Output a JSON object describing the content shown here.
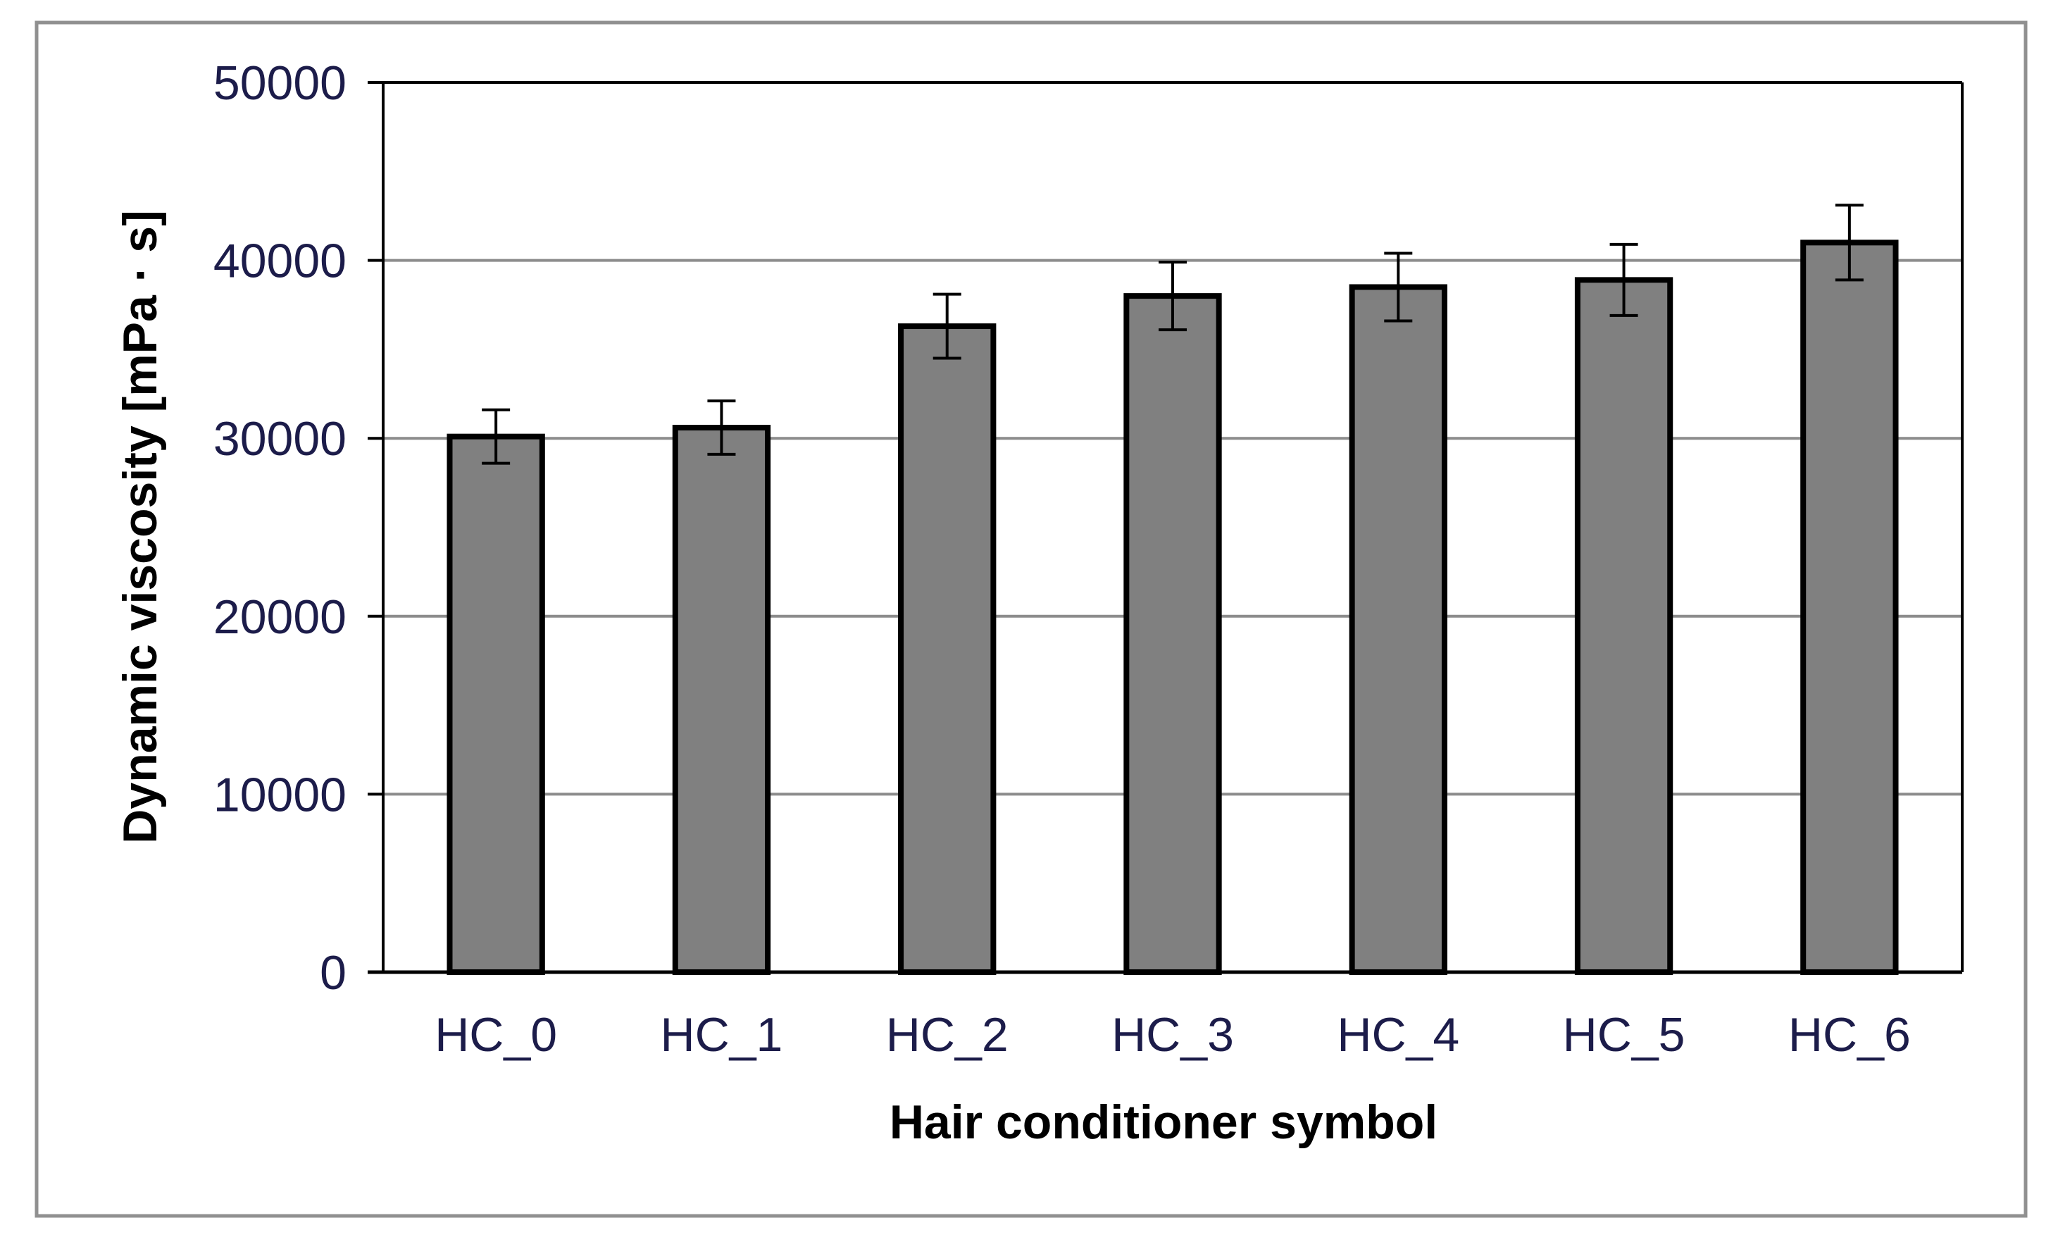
{
  "chart_data": {
    "type": "bar",
    "title": "",
    "xlabel": "Hair conditioner symbol",
    "ylabel": "Dynamic viscosity  [mPa · s]",
    "categories": [
      "HC_0",
      "HC_1",
      "HC_2",
      "HC_3",
      "HC_4",
      "HC_5",
      "HC_6"
    ],
    "series": [
      {
        "values": [
          30100,
          30600,
          36300,
          38000,
          38500,
          38900,
          41000
        ],
        "error": [
          1500,
          1500,
          1800,
          1900,
          1900,
          2000,
          2100
        ]
      }
    ],
    "ylim": [
      0,
      50000
    ],
    "yticks": [
      "0",
      "10000",
      "20000",
      "30000",
      "40000",
      "50000"
    ],
    "grid": true,
    "legend": "none",
    "colors": {
      "bar_fill": "#808080",
      "bar_edge": "#000000",
      "grid": "#8c8c8c",
      "frame": "#909090",
      "tick_text": "#1c1c4a",
      "label_text": "#000000"
    }
  }
}
